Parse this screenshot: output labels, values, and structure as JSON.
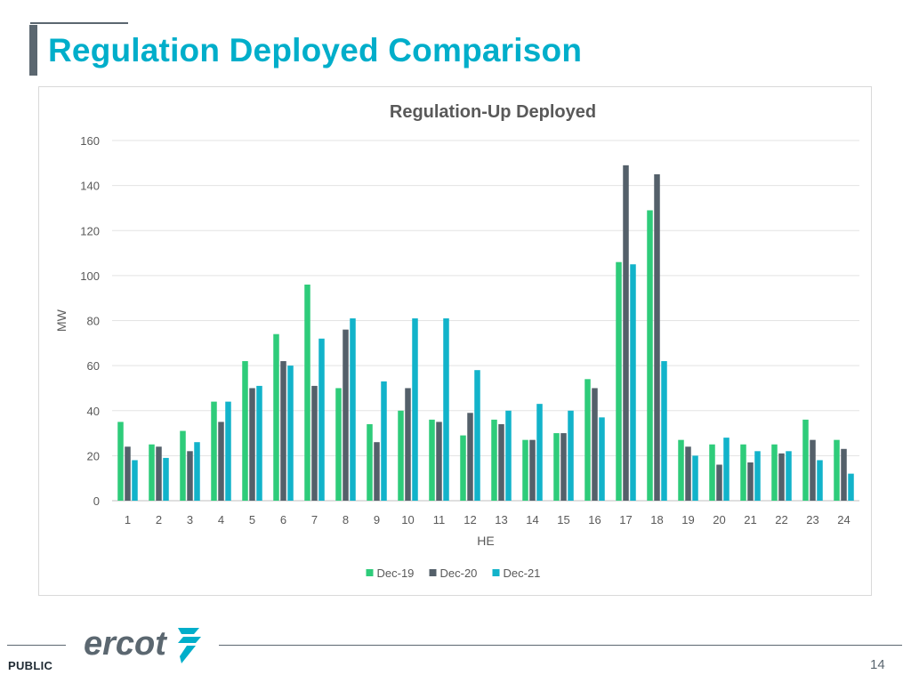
{
  "slide": {
    "title": "Regulation Deployed Comparison",
    "classification": "PUBLIC",
    "page_number": "14",
    "logo_text": "ercot"
  },
  "colors": {
    "title": "#00aeca",
    "accent_bar": "#5b6770",
    "logo": "#5b6770",
    "logo_mark": "#00aeca"
  },
  "chart_data": {
    "type": "bar",
    "title": "Regulation-Up Deployed",
    "xlabel": "HE",
    "ylabel": "MW",
    "ylim": [
      0,
      160
    ],
    "yticks": [
      0,
      20,
      40,
      60,
      80,
      100,
      120,
      140,
      160
    ],
    "grid": true,
    "legend_position": "bottom",
    "categories": [
      "1",
      "2",
      "3",
      "4",
      "5",
      "6",
      "7",
      "8",
      "9",
      "10",
      "11",
      "12",
      "13",
      "14",
      "15",
      "16",
      "17",
      "18",
      "19",
      "20",
      "21",
      "22",
      "23",
      "24"
    ],
    "series": [
      {
        "name": "Dec-19",
        "color": "#2ecc7a",
        "values": [
          35,
          25,
          31,
          44,
          62,
          74,
          96,
          50,
          34,
          40,
          36,
          29,
          36,
          27,
          30,
          54,
          106,
          129,
          27,
          25,
          25,
          25,
          36,
          27
        ]
      },
      {
        "name": "Dec-20",
        "color": "#54606a",
        "values": [
          24,
          24,
          22,
          35,
          50,
          62,
          51,
          76,
          26,
          50,
          35,
          39,
          34,
          27,
          30,
          50,
          149,
          145,
          24,
          16,
          17,
          21,
          27,
          23
        ]
      },
      {
        "name": "Dec-21",
        "color": "#12b3ca",
        "values": [
          18,
          19,
          26,
          44,
          51,
          60,
          72,
          81,
          53,
          81,
          81,
          58,
          40,
          43,
          40,
          37,
          105,
          62,
          20,
          28,
          22,
          22,
          18,
          12
        ]
      }
    ]
  }
}
